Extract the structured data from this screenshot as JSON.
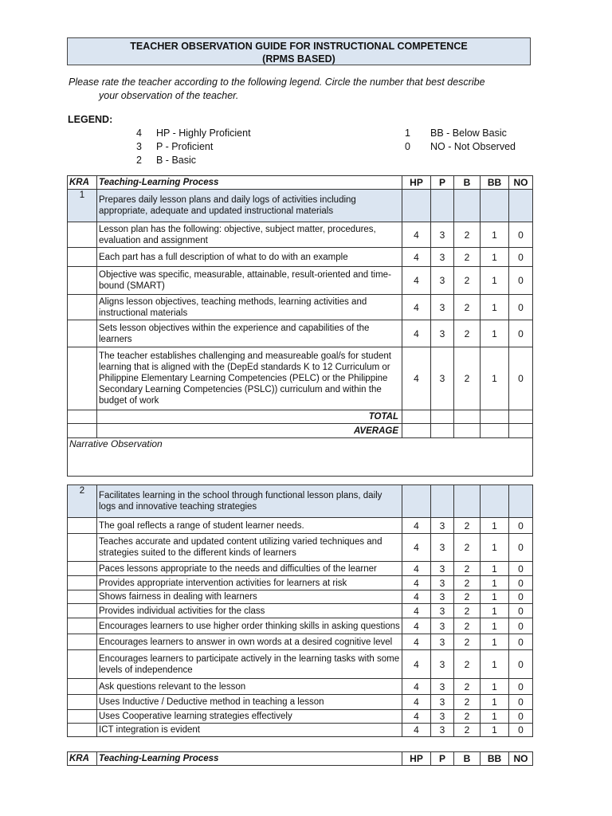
{
  "title": {
    "line1": "TEACHER OBSERVATION GUIDE FOR INSTRUCTIONAL COMPETENCE",
    "line2": "(RPMS BASED)"
  },
  "instructions": {
    "line1": "Please rate the teacher according to the following legend. Circle the number that best describe",
    "line2": "your observation of the teacher."
  },
  "legend": {
    "label": "LEGEND:",
    "items": [
      {
        "num": "4",
        "text": "HP - Highly Proficient"
      },
      {
        "num": "3",
        "text": "P - Proficient"
      },
      {
        "num": "2",
        "text": "B - Basic"
      },
      {
        "num": "1",
        "text": "BB - Below Basic"
      },
      {
        "num": "0",
        "text": "NO - Not Observed"
      }
    ]
  },
  "header": {
    "kra": "KRA",
    "process": "Teaching-Learning Process",
    "cols": [
      "HP",
      "P",
      "B",
      "BB",
      "NO"
    ]
  },
  "scale": [
    "4",
    "3",
    "2",
    "1",
    "0"
  ],
  "section1": {
    "kra": "1",
    "main": "Prepares daily lesson plans and daily logs of activities including appropriate, adequate and updated instructional materials",
    "items": [
      "Lesson plan has the following: objective, subject matter, procedures, evaluation and assignment",
      "Each part has a full description of what to do with an example",
      "Objective was specific, measurable, attainable, result-oriented and time-bound (SMART)",
      "Aligns lesson objectives, teaching methods, learning activities and instructional materials",
      "Sets lesson objectives within the experience and capabilities of the learners",
      "The teacher establishes challenging and measureable goal/s for student learning that is aligned with the (DepEd standards K to 12 Curriculum or Philippine Elementary Learning Competencies (PELC) or the Philippine Secondary Learning Competencies (PSLC)) curriculum and within the budget of work"
    ],
    "total": "TOTAL",
    "average": "AVERAGE",
    "narrative": "Narrative Observation"
  },
  "section2": {
    "kra": "2",
    "main": "Facilitates learning in the school through functional lesson plans, daily logs and innovative teaching strategies",
    "items": [
      "The goal reflects  a range of student learner needs.",
      "Teaches accurate and updated content utilizing varied techniques and strategies suited to the different kinds of learners",
      "Paces lessons appropriate to the needs and difficulties of the learner",
      "Provides appropriate intervention activities for learners at risk",
      "Shows fairness in dealing with learners",
      "Provides individual activities for the class",
      "Encourages learners to use higher order thinking skills in asking questions",
      "Encourages learners to answer in own words at a desired cognitive level",
      "Encourages learners to participate actively in the learning tasks with some levels of independence",
      "Ask questions relevant to the lesson",
      "Uses Inductive / Deductive method in teaching a lesson",
      "Uses Cooperative learning strategies effectively",
      "ICT integration is evident"
    ]
  }
}
